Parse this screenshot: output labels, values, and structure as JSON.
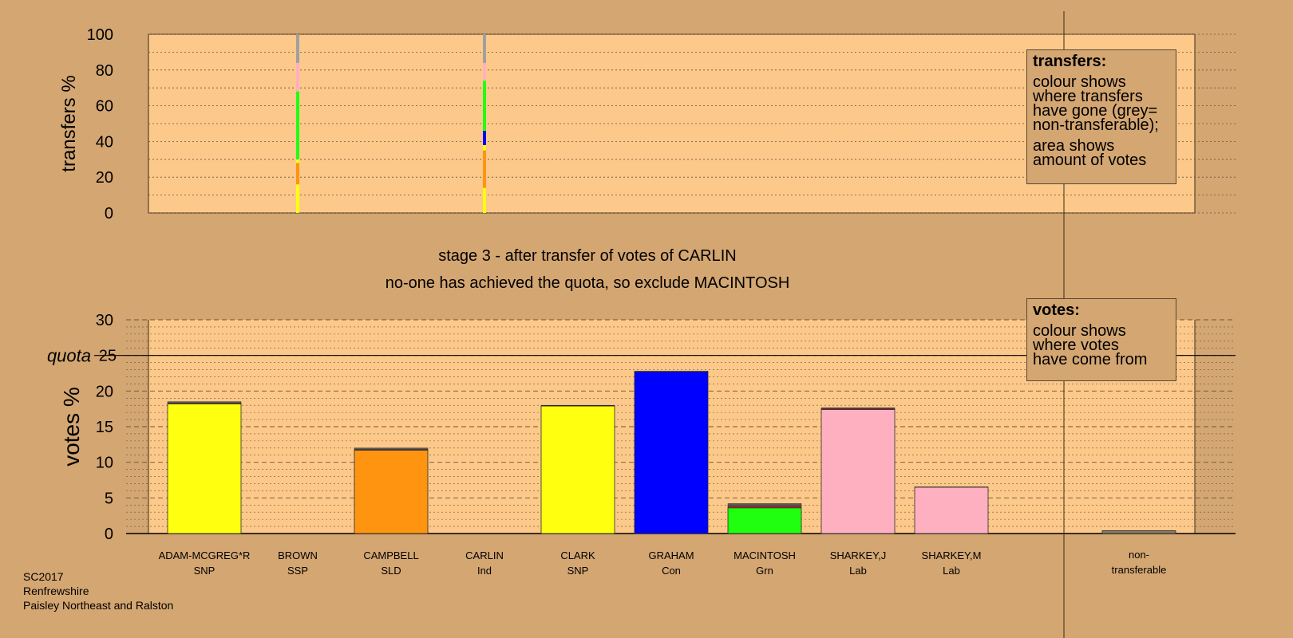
{
  "colors": {
    "background": "#d4a672",
    "plot_bg": "#fcc98a",
    "SNP": "#ffff10",
    "SSP": "#ff4040",
    "SLD": "#ff9410",
    "Ind": "#a0a0a0",
    "Con": "#0000ff",
    "Grn": "#20ff10",
    "Lab": "#ffb0c0",
    "nontransferable": "#a0a0a0"
  },
  "stage_text": {
    "line1": "stage 3 - after transfer of votes of CARLIN",
    "line2": "no-one has achieved the quota, so exclude MACINTOSH"
  },
  "transfers_box": {
    "title": "transfers:",
    "lines": [
      "colour shows",
      "where transfers",
      "have gone (grey=",
      "non-transferable);"
    ],
    "lines2": [
      "area shows",
      "amount of votes"
    ]
  },
  "votes_box": {
    "title": "votes:",
    "lines": [
      "colour shows",
      "where votes",
      "have come from"
    ]
  },
  "footer": [
    "SC2017",
    "Renfrewshire",
    "Paisley Northeast and Ralston"
  ],
  "chart_data": [
    {
      "type": "bar",
      "subtype": "stacked-transfer-strips",
      "ylabel": "transfers %",
      "ylim": [
        0,
        100
      ],
      "yticks": [
        0,
        20,
        40,
        60,
        80,
        100
      ],
      "strips": [
        {
          "candidate": "BROWN",
          "segments": [
            {
              "party": "SNP",
              "from": 0,
              "to": 16
            },
            {
              "party": "SLD",
              "from": 16,
              "to": 28
            },
            {
              "party": "SNP",
              "from": 28,
              "to": 30
            },
            {
              "party": "Grn",
              "from": 30,
              "to": 68
            },
            {
              "party": "Lab",
              "from": 68,
              "to": 84
            },
            {
              "party": "nontransferable",
              "from": 84,
              "to": 100
            }
          ]
        },
        {
          "candidate": "CARLIN",
          "segments": [
            {
              "party": "SNP",
              "from": 0,
              "to": 14
            },
            {
              "party": "SLD",
              "from": 14,
              "to": 35
            },
            {
              "party": "SNP",
              "from": 35,
              "to": 38
            },
            {
              "party": "Con",
              "from": 38,
              "to": 46
            },
            {
              "party": "Grn",
              "from": 46,
              "to": 74
            },
            {
              "party": "Lab",
              "from": 74,
              "to": 84
            },
            {
              "party": "nontransferable",
              "from": 84,
              "to": 100
            }
          ]
        }
      ]
    },
    {
      "type": "bar",
      "subtype": "stacked",
      "ylabel": "votes %",
      "ylim": [
        0,
        30
      ],
      "yticks": [
        0,
        5,
        10,
        15,
        20,
        25,
        30
      ],
      "quota": 25,
      "quota_label": "quota",
      "categories": [
        {
          "name": "ADAM-MCGREG*R",
          "party": "SNP"
        },
        {
          "name": "BROWN",
          "party": "SSP"
        },
        {
          "name": "CAMPBELL",
          "party": "SLD"
        },
        {
          "name": "CARLIN",
          "party": "Ind"
        },
        {
          "name": "CLARK",
          "party": "SNP"
        },
        {
          "name": "GRAHAM",
          "party": "Con"
        },
        {
          "name": "MACINTOSH",
          "party": "Grn"
        },
        {
          "name": "SHARKEY,J",
          "party": "Lab"
        },
        {
          "name": "SHARKEY,M",
          "party": "Lab"
        }
      ],
      "nontransferable_label": [
        "non-",
        "transferable"
      ],
      "nontransferable_value": 0.4,
      "bars": [
        {
          "base": 18.2,
          "transfers": [
            {
              "party": "SSP",
              "value": 0.1
            },
            {
              "party": "Ind",
              "value": 0.2
            }
          ]
        },
        {
          "base": 0,
          "transfers": []
        },
        {
          "base": 11.7,
          "transfers": [
            {
              "party": "SSP",
              "value": 0.1
            },
            {
              "party": "Ind",
              "value": 0.2
            }
          ]
        },
        {
          "base": 0,
          "transfers": []
        },
        {
          "base": 17.9,
          "transfers": [
            {
              "party": "SSP",
              "value": 0.05
            },
            {
              "party": "Ind",
              "value": 0.05
            }
          ]
        },
        {
          "base": 22.7,
          "transfers": [
            {
              "party": "Ind",
              "value": 0.1
            }
          ]
        },
        {
          "base": 3.6,
          "transfers": [
            {
              "party": "SSP",
              "value": 0.3
            },
            {
              "party": "Ind",
              "value": 0.3
            }
          ]
        },
        {
          "base": 17.4,
          "transfers": [
            {
              "party": "SSP",
              "value": 0.15
            },
            {
              "party": "Ind",
              "value": 0.1
            }
          ]
        },
        {
          "base": 6.5,
          "transfers": [
            {
              "party": "Ind",
              "value": 0.05
            }
          ]
        }
      ]
    }
  ]
}
